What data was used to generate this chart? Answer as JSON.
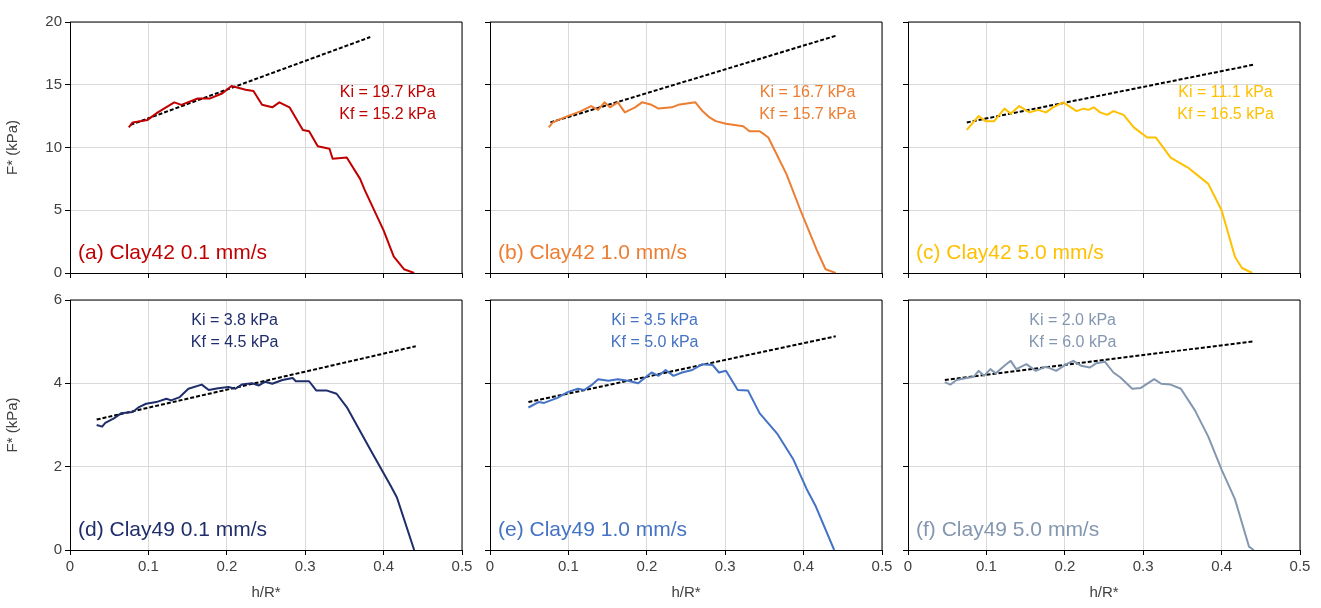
{
  "chart_data": [
    {
      "type": "line",
      "ylabel": "F* (kPa)",
      "xlim": [
        0,
        0.5
      ],
      "xticks": [
        0,
        0.1,
        0.2,
        0.3,
        0.4,
        0.5
      ],
      "ylim": [
        0,
        20
      ],
      "yticks": [
        0,
        5,
        10,
        15,
        20
      ],
      "grid": true,
      "tick_labels": "y",
      "marker": "none",
      "annotations": [
        "(a) Clay42 0.1 mm/s",
        "Ki = 19.7 kPa",
        "Kf = 15.2 kPa"
      ],
      "series": [
        {
          "color": "#c00000",
          "line_style": "solid",
          "x": [
            0.075,
            0.08,
            0.099,
            0.112,
            0.133,
            0.142,
            0.163,
            0.178,
            0.194,
            0.206,
            0.224,
            0.234,
            0.245,
            0.258,
            0.267,
            0.28,
            0.297,
            0.305,
            0.316,
            0.331,
            0.335,
            0.353,
            0.37,
            0.376,
            0.4,
            0.413,
            0.426,
            0.439
          ],
          "values": [
            11.6,
            12.0,
            12.2,
            12.8,
            13.6,
            13.4,
            13.9,
            13.9,
            14.3,
            14.9,
            14.6,
            14.5,
            13.4,
            13.2,
            13.6,
            13.2,
            11.4,
            11.3,
            10.1,
            9.9,
            9.1,
            9.2,
            7.5,
            6.6,
            3.4,
            1.3,
            0.3,
            0
          ]
        },
        {
          "type": "line",
          "color": "#000000",
          "line_style": "dashed",
          "x": [
            0.077,
            0.383
          ],
          "values": [
            11.8,
            18.8
          ]
        }
      ]
    },
    {
      "type": "line",
      "xlim": [
        0,
        0.5
      ],
      "xticks": [
        0,
        0.1,
        0.2,
        0.3,
        0.4,
        0.5
      ],
      "ylim": [
        0,
        20
      ],
      "yticks": [
        0,
        5,
        10,
        15,
        20
      ],
      "grid": true,
      "tick_labels": false,
      "marker": "none",
      "annotations": [
        "(b) Clay42 1.0 mm/s",
        "Ki = 16.7 kPa",
        "Kf = 15.7 kPa"
      ],
      "series": [
        {
          "color": "#ed7d31",
          "line_style": "solid",
          "x": [
            0.075,
            0.08,
            0.095,
            0.116,
            0.129,
            0.138,
            0.146,
            0.153,
            0.163,
            0.172,
            0.185,
            0.194,
            0.206,
            0.215,
            0.232,
            0.24,
            0.262,
            0.271,
            0.28,
            0.288,
            0.301,
            0.323,
            0.331,
            0.344,
            0.355,
            0.378,
            0.396,
            0.417,
            0.428,
            0.441
          ],
          "values": [
            11.6,
            12.0,
            12.4,
            12.9,
            13.3,
            13.0,
            13.6,
            13.2,
            13.6,
            12.8,
            13.2,
            13.6,
            13.4,
            13.1,
            13.2,
            13.4,
            13.6,
            12.9,
            12.4,
            12.1,
            11.9,
            11.7,
            11.3,
            11.3,
            10.8,
            7.9,
            5.0,
            1.8,
            0.3,
            0
          ]
        },
        {
          "type": "line",
          "color": "#000000",
          "line_style": "dashed",
          "x": [
            0.077,
            0.441
          ],
          "values": [
            12.0,
            18.9
          ]
        }
      ]
    },
    {
      "type": "line",
      "xlim": [
        0,
        0.5
      ],
      "xticks": [
        0,
        0.1,
        0.2,
        0.3,
        0.4,
        0.5
      ],
      "ylim": [
        0,
        20
      ],
      "yticks": [
        0,
        5,
        10,
        15,
        20
      ],
      "grid": true,
      "tick_labels": false,
      "marker": "none",
      "annotations": [
        "(c) Clay42 5.0 mm/s",
        "Ki = 11.1 kPa",
        "Kf = 16.5 kPa"
      ],
      "series": [
        {
          "color": "#ffc000",
          "line_style": "solid",
          "x": [
            0.075,
            0.09,
            0.099,
            0.11,
            0.123,
            0.131,
            0.142,
            0.155,
            0.166,
            0.176,
            0.185,
            0.198,
            0.215,
            0.224,
            0.23,
            0.237,
            0.245,
            0.254,
            0.262,
            0.275,
            0.288,
            0.305,
            0.316,
            0.335,
            0.357,
            0.383,
            0.4,
            0.417,
            0.426,
            0.439
          ],
          "values": [
            11.4,
            12.5,
            12.1,
            12.1,
            13.1,
            12.7,
            13.3,
            12.8,
            13.0,
            12.8,
            13.2,
            13.6,
            12.9,
            13.1,
            13.0,
            13.2,
            12.8,
            12.6,
            12.9,
            12.6,
            11.6,
            10.8,
            10.8,
            9.2,
            8.4,
            7.1,
            5.0,
            1.3,
            0.4,
            0
          ]
        },
        {
          "type": "line",
          "color": "#000000",
          "line_style": "dashed",
          "x": [
            0.075,
            0.441
          ],
          "values": [
            12.0,
            16.6
          ]
        }
      ]
    },
    {
      "type": "line",
      "xlabel": "h/R*",
      "ylabel": "F* (kPa)",
      "xlim": [
        0,
        0.5
      ],
      "xticks": [
        0,
        0.1,
        0.2,
        0.3,
        0.4,
        0.5
      ],
      "ylim": [
        0,
        6
      ],
      "yticks": [
        0,
        2,
        4,
        6
      ],
      "grid": true,
      "marker": "none",
      "annotations": [
        "(d) Clay49 0.1 mm/s",
        "Ki = 3.8 kPa",
        "Kf = 4.5 kPa"
      ],
      "series": [
        {
          "color": "#1f2d6b",
          "line_style": "solid",
          "x": [
            0.034,
            0.041,
            0.045,
            0.056,
            0.065,
            0.08,
            0.088,
            0.097,
            0.11,
            0.123,
            0.129,
            0.14,
            0.151,
            0.168,
            0.177,
            0.189,
            0.202,
            0.211,
            0.219,
            0.232,
            0.241,
            0.249,
            0.258,
            0.271,
            0.284,
            0.288,
            0.305,
            0.314,
            0.327,
            0.34,
            0.353,
            0.383,
            0.409,
            0.417,
            0.439
          ],
          "values": [
            3.0,
            2.96,
            3.05,
            3.16,
            3.28,
            3.31,
            3.43,
            3.51,
            3.55,
            3.63,
            3.59,
            3.67,
            3.87,
            3.97,
            3.84,
            3.88,
            3.91,
            3.87,
            3.97,
            4.0,
            3.95,
            4.04,
            3.99,
            4.08,
            4.13,
            4.05,
            4.05,
            3.83,
            3.83,
            3.75,
            3.43,
            2.41,
            1.54,
            1.26,
            0
          ]
        },
        {
          "type": "line",
          "color": "#000000",
          "line_style": "dashed",
          "x": [
            0.034,
            0.441
          ],
          "values": [
            3.13,
            4.89
          ]
        }
      ]
    },
    {
      "type": "line",
      "xlabel": "h/R*",
      "xlim": [
        0,
        0.5
      ],
      "xticks": [
        0,
        0.1,
        0.2,
        0.3,
        0.4,
        0.5
      ],
      "ylim": [
        0,
        6
      ],
      "yticks": [
        0,
        2,
        4,
        6
      ],
      "grid": true,
      "tick_labels": "x",
      "marker": "none",
      "annotations": [
        "(e) Clay49 1.0 mm/s",
        "Ki = 3.5 kPa",
        "Kf = 5.0 kPa"
      ],
      "series": [
        {
          "color": "#4472c4",
          "line_style": "solid",
          "x": [
            0.049,
            0.062,
            0.069,
            0.086,
            0.099,
            0.112,
            0.12,
            0.129,
            0.138,
            0.151,
            0.163,
            0.176,
            0.189,
            0.206,
            0.215,
            0.224,
            0.234,
            0.245,
            0.258,
            0.271,
            0.284,
            0.292,
            0.301,
            0.316,
            0.329,
            0.344,
            0.366,
            0.387,
            0.404,
            0.415,
            0.439
          ],
          "values": [
            3.42,
            3.55,
            3.53,
            3.65,
            3.79,
            3.87,
            3.84,
            3.95,
            4.1,
            4.06,
            4.1,
            4.06,
            4.0,
            4.26,
            4.18,
            4.32,
            4.18,
            4.26,
            4.32,
            4.46,
            4.44,
            4.26,
            4.3,
            3.84,
            3.83,
            3.28,
            2.8,
            2.17,
            1.46,
            1.07,
            0
          ]
        },
        {
          "type": "line",
          "color": "#000000",
          "line_style": "dashed",
          "x": [
            0.049,
            0.441
          ],
          "values": [
            3.55,
            5.13
          ]
        }
      ]
    },
    {
      "type": "line",
      "xlabel": "h/R*",
      "xlim": [
        0,
        0.5
      ],
      "xticks": [
        0,
        0.1,
        0.2,
        0.3,
        0.4,
        0.5
      ],
      "ylim": [
        0,
        6
      ],
      "yticks": [
        0,
        2,
        4,
        6
      ],
      "grid": true,
      "tick_labels": "x",
      "marker": "none",
      "annotations": [
        "(f) Clay49 5.0 mm/s",
        "Ki = 2.0 kPa",
        "Kf = 6.0 kPa"
      ],
      "series": [
        {
          "color": "#8497b0",
          "line_style": "solid",
          "x": [
            0.047,
            0.054,
            0.062,
            0.073,
            0.084,
            0.09,
            0.097,
            0.105,
            0.112,
            0.123,
            0.131,
            0.138,
            0.151,
            0.163,
            0.176,
            0.189,
            0.202,
            0.211,
            0.221,
            0.232,
            0.24,
            0.251,
            0.262,
            0.271,
            0.286,
            0.297,
            0.314,
            0.323,
            0.335,
            0.348,
            0.366,
            0.383,
            0.4,
            0.417,
            0.435,
            0.441
          ],
          "values": [
            4.03,
            3.97,
            4.08,
            4.12,
            4.16,
            4.3,
            4.18,
            4.34,
            4.24,
            4.42,
            4.54,
            4.34,
            4.46,
            4.3,
            4.4,
            4.3,
            4.46,
            4.54,
            4.42,
            4.38,
            4.48,
            4.52,
            4.26,
            4.14,
            3.87,
            3.89,
            4.1,
            3.99,
            3.97,
            3.87,
            3.35,
            2.72,
            1.93,
            1.22,
            0.08,
            0
          ]
        },
        {
          "type": "line",
          "color": "#000000",
          "line_style": "dashed",
          "x": [
            0.047,
            0.441
          ],
          "values": [
            4.08,
            5.01
          ]
        }
      ]
    }
  ]
}
